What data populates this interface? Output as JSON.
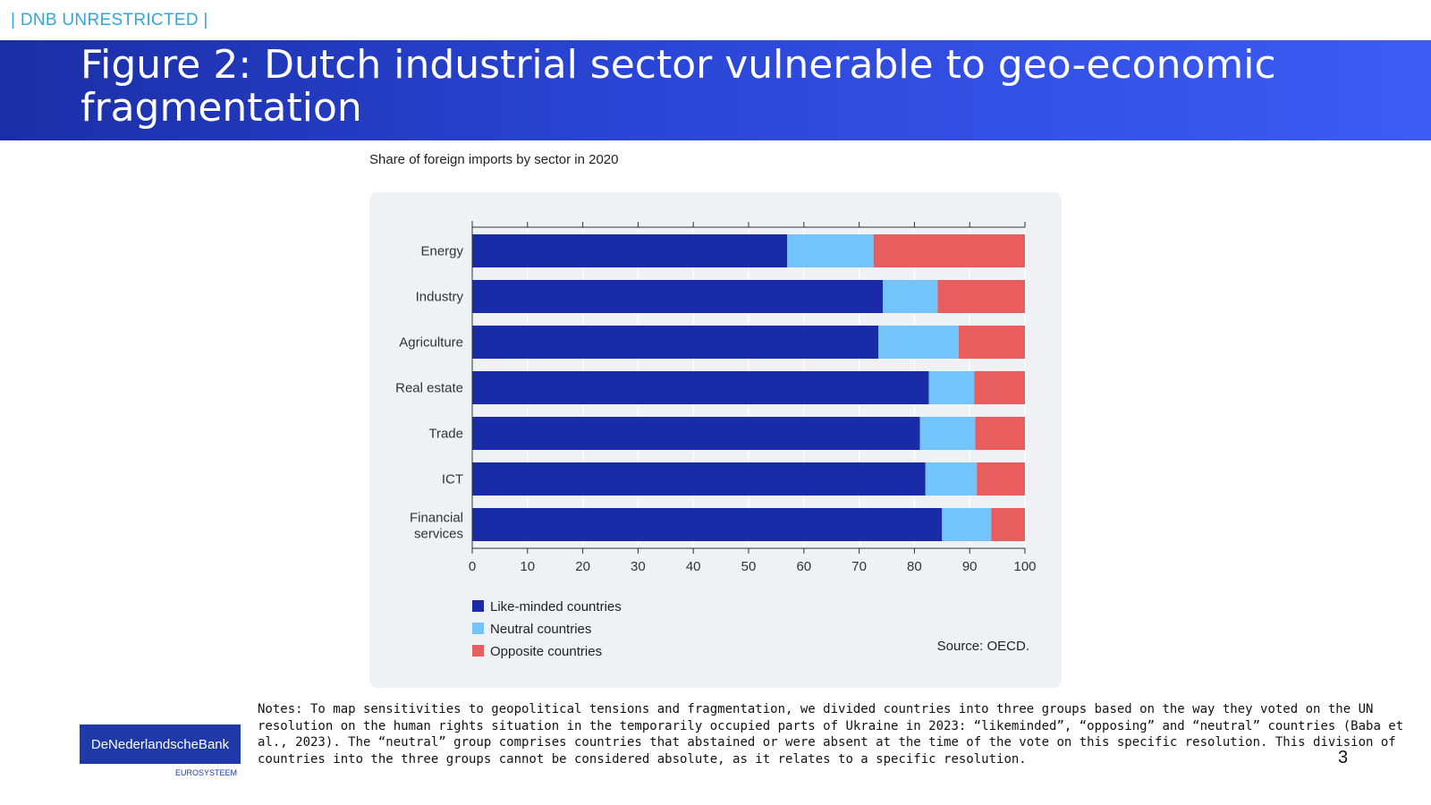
{
  "header": {
    "classification": "| DNB UNRESTRICTED |",
    "title": "Figure 2: Dutch industrial sector vulnerable to geo-economic fragmentation"
  },
  "chart_data": {
    "type": "bar",
    "orientation": "horizontal",
    "stacked": true,
    "title": "Share of foreign imports by sector in 2020",
    "categories": [
      "Energy",
      "Industry",
      "Agriculture",
      "Real estate",
      "Trade",
      "ICT",
      "Financial services"
    ],
    "series": [
      {
        "name": "Like-minded countries",
        "color": "#1a2ba8",
        "values": [
          57,
          74.3,
          73.5,
          82.6,
          81,
          82,
          85
        ]
      },
      {
        "name": "Neutral countries",
        "color": "#72c4fb",
        "values": [
          15.6,
          9.9,
          14.5,
          8.2,
          10,
          9.3,
          8.9
        ]
      },
      {
        "name": "Opposite countries",
        "color": "#e85d5d",
        "values": [
          27.4,
          15.8,
          12,
          9.2,
          9,
          8.7,
          6.1
        ]
      }
    ],
    "xlim": [
      0,
      100
    ],
    "xticks": [
      0,
      10,
      20,
      30,
      40,
      50,
      60,
      70,
      80,
      90,
      100
    ],
    "xlabel": "",
    "ylabel": "",
    "grid": true,
    "legend": "bottom-left",
    "source": "Source: OECD."
  },
  "notes": "Notes: To map sensitivities to geopolitical tensions and fragmentation, we divided countries into three groups based on the way they voted on the UN resolution on the human rights situation in the temporarily occupied parts of Ukraine in 2023: “likeminded”, “opposing” and “neutral” countries (Baba et al., 2023). The “neutral” group comprises countries that abstained or were absent at the time of the vote on this specific resolution. This division of countries into the three groups cannot be considered absolute, as it relates to a specific resolution.",
  "footer": {
    "page_number": "3",
    "logo_text": "DeNederlandscheBank",
    "logo_subtext": "EUROSYSTEEM"
  }
}
